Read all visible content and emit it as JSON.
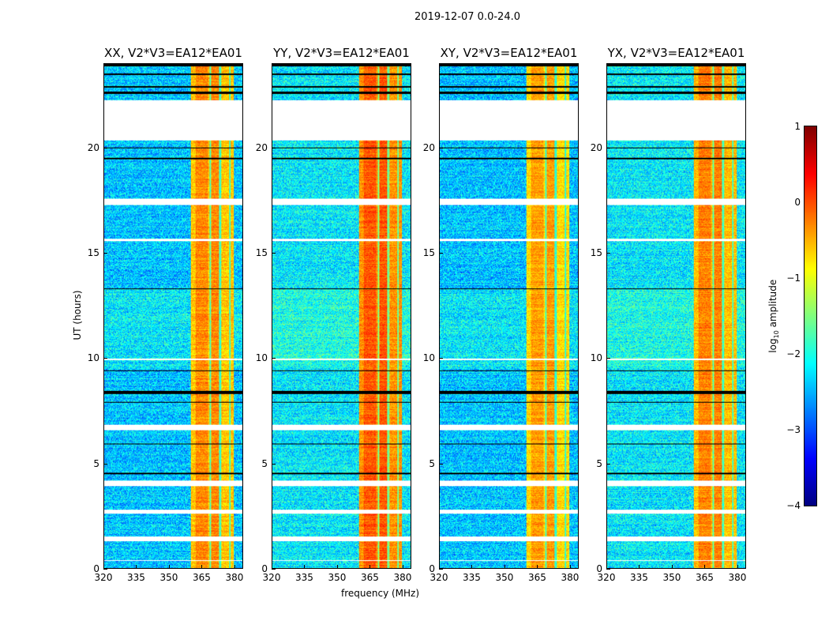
{
  "chart_data": {
    "type": "heatmap",
    "suptitle": "2019-12-07 0.0-24.0",
    "xlabel": "frequency (MHz)",
    "ylabel": "UT (hours)",
    "xlim": [
      320,
      384
    ],
    "ylim": [
      0,
      24
    ],
    "xticks": [
      "320",
      "335",
      "350",
      "365",
      "380"
    ],
    "xtick_values": [
      320,
      335,
      350,
      365,
      380
    ],
    "yticks": [
      "0",
      "5",
      "10",
      "15",
      "20"
    ],
    "ytick_values": [
      0,
      5,
      10,
      15,
      20
    ],
    "panels": [
      {
        "title": "XX, V2*V3=EA12*EA01",
        "band_level": -0.6,
        "bg_level": -2.4
      },
      {
        "title": "YY, V2*V3=EA12*EA01",
        "band_level": -0.35,
        "bg_level": -2.2
      },
      {
        "title": "XY, V2*V3=EA12*EA01",
        "band_level": -0.7,
        "bg_level": -2.4
      },
      {
        "title": "YX, V2*V3=EA12*EA01",
        "band_level": -0.55,
        "bg_level": -2.2
      }
    ],
    "bright_band_mhz": [
      360,
      380
    ],
    "band_dips_mhz": [
      369,
      373.5,
      378
    ],
    "flagged_hours_white": [
      [
        20.4,
        22.3
      ],
      [
        17.3,
        17.6
      ],
      [
        15.6,
        15.7
      ],
      [
        9.9,
        10.0
      ],
      [
        6.6,
        6.85
      ],
      [
        3.9,
        4.2
      ],
      [
        2.6,
        2.8
      ],
      [
        1.3,
        1.5
      ],
      [
        0.35,
        0.4
      ]
    ],
    "flagged_hours_black": [
      [
        23.9,
        24
      ],
      [
        23.5,
        23.55
      ],
      [
        22.9,
        22.95
      ],
      [
        22.6,
        22.7
      ],
      [
        20.0,
        20.05
      ],
      [
        19.5,
        19.55
      ],
      [
        13.3,
        13.35
      ],
      [
        9.4,
        9.45
      ],
      [
        8.3,
        8.45
      ],
      [
        7.9,
        7.95
      ],
      [
        5.9,
        5.95
      ],
      [
        4.5,
        4.55
      ]
    ],
    "colorbar": {
      "label": "log10 amplitude",
      "label_base": "log",
      "label_sub": "10",
      "label_rest": " amplitude",
      "range": [
        -4,
        1
      ],
      "ticks": [
        "1",
        "0",
        "−1",
        "−2",
        "−3",
        "−4"
      ],
      "tick_values": [
        1,
        0,
        -1,
        -2,
        -3,
        -4
      ],
      "colormap": "jet"
    }
  }
}
